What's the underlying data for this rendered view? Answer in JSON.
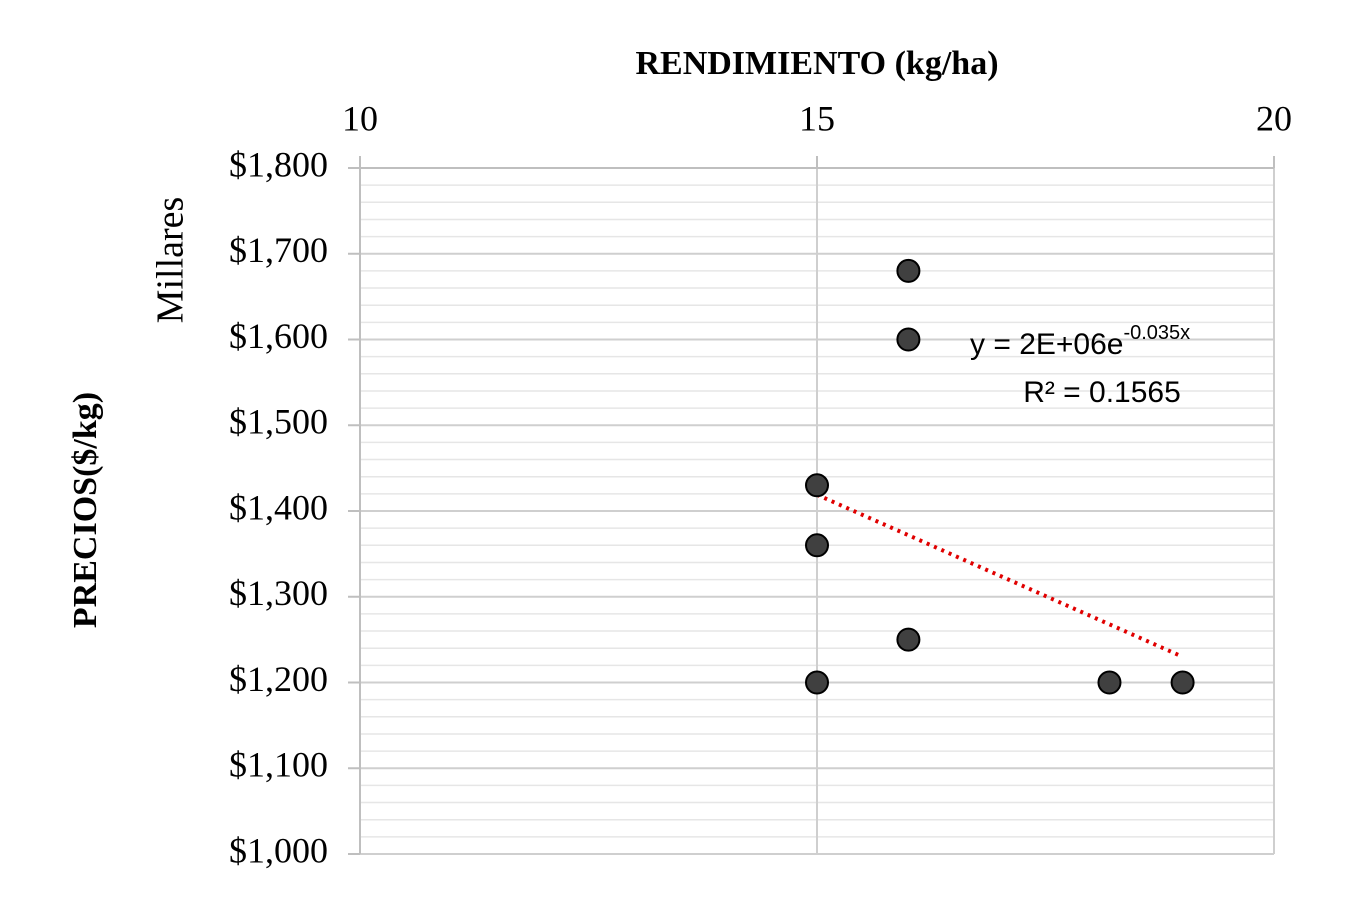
{
  "chart_data": {
    "type": "scatter",
    "x_label": "RENDIMIENTO (kg/ha)",
    "y_label": "PRECIOS($/kg)",
    "y_unit_label": "Millares",
    "xlim": [
      10,
      20
    ],
    "xticks": [
      10,
      15,
      20
    ],
    "ylim": [
      1000,
      1800
    ],
    "yticks": [
      {
        "value": 1000,
        "label": "$1,000"
      },
      {
        "value": 1100,
        "label": "$1,100"
      },
      {
        "value": 1200,
        "label": "$1,200"
      },
      {
        "value": 1300,
        "label": "$1,300"
      },
      {
        "value": 1400,
        "label": "$1,400"
      },
      {
        "value": 1500,
        "label": "$1,500"
      },
      {
        "value": 1600,
        "label": "$1,600"
      },
      {
        "value": 1700,
        "label": "$1,700"
      },
      {
        "value": 1800,
        "label": "$1,800"
      }
    ],
    "grid": true,
    "minor_grid": true,
    "x_axis_position": "top",
    "series": [
      {
        "color": "#404040",
        "x": [
          16,
          16,
          15,
          15,
          16,
          15,
          18.2,
          19
        ],
        "values": [
          1680,
          1600,
          1430,
          1360,
          1250,
          1200,
          1200,
          1200
        ]
      }
    ],
    "trendline": {
      "color": "#e00000",
      "x": [
        15,
        19
      ],
      "values": [
        1419,
        1230
      ]
    },
    "annotation": {
      "equation": "y = 2E+06e",
      "exponent": "-0.035x",
      "r_squared": "R² = 0.1565"
    }
  }
}
